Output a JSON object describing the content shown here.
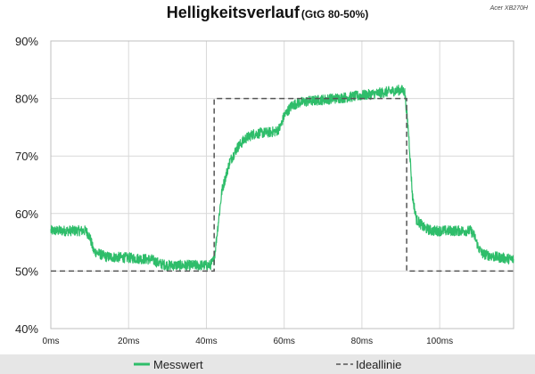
{
  "chart_data": {
    "type": "line",
    "title": "Helligkeitsverlauf",
    "subtitle": "(GtG 80-50%)",
    "model": "Acer XB270H",
    "xlabel": "",
    "ylabel": "",
    "x_unit": "ms",
    "xlim": [
      0,
      119
    ],
    "ylim": [
      40,
      90
    ],
    "x_ticks": [
      0,
      20,
      40,
      60,
      80,
      100
    ],
    "x_tick_labels": [
      "0ms",
      "20ms",
      "40ms",
      "60ms",
      "80ms",
      "100ms"
    ],
    "y_ticks": [
      40,
      50,
      60,
      70,
      80,
      90
    ],
    "y_tick_labels": [
      "40%",
      "50%",
      "60%",
      "70%",
      "80%",
      "90%"
    ],
    "grid": true,
    "legend_position": "bottom",
    "series": [
      {
        "name": "Messwert",
        "color": "#2ebd6a",
        "style": "solid-noisy",
        "noise_amplitude": 0.9,
        "x": [
          0,
          9,
          10,
          11,
          14,
          20,
          26,
          28,
          30,
          36,
          41,
          42,
          43,
          44,
          46,
          48,
          50,
          52,
          54,
          56,
          58,
          59,
          60,
          62,
          64,
          66,
          70,
          76,
          82,
          88,
          90,
          91,
          92,
          93,
          94,
          96,
          98,
          100,
          104,
          108,
          109,
          110,
          111,
          114,
          119
        ],
        "y": [
          57,
          57,
          56,
          53.5,
          52.5,
          52.3,
          52,
          51.3,
          51,
          51,
          51,
          52,
          58,
          64,
          69,
          71.5,
          73,
          73.8,
          74,
          74.1,
          74.3,
          75,
          77,
          78.8,
          79.3,
          79.5,
          79.8,
          80.2,
          80.7,
          81.3,
          81.5,
          81.2,
          74,
          63,
          59,
          57.5,
          57,
          57,
          57,
          57,
          56,
          54,
          53,
          52.5,
          52
        ]
      },
      {
        "name": "Ideallinie",
        "color": "#555555",
        "style": "dashed",
        "x": [
          0,
          42,
          42,
          91.5,
          91.5,
          119
        ],
        "y": [
          50,
          50,
          80,
          80,
          50,
          50
        ]
      }
    ]
  }
}
